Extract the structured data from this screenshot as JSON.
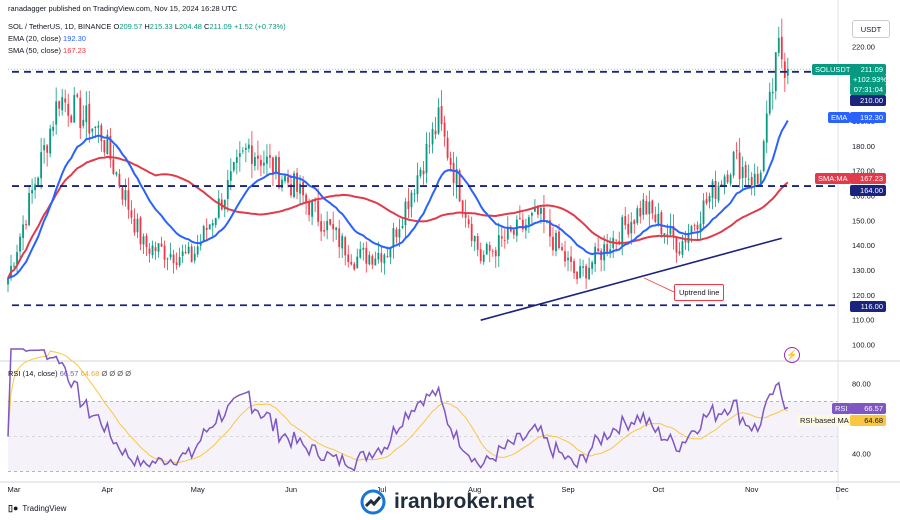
{
  "credit": "ranadagger published on TradingView.com, Nov 15, 2024 16:28 UTC",
  "header": {
    "symbol": "SOL / TetherUS, 1D, BINANCE",
    "o_label": "O",
    "o_value": "209.57",
    "h_label": "H",
    "h_value": "215.33",
    "l_label": "L",
    "l_value": "204.48",
    "c_label": "C",
    "c_value": "211.09",
    "change": "+1.52 (+0.73%)",
    "ema_label": "EMA (20, close)",
    "ema_value": "192.30",
    "sma_label": "SMA (50, close)",
    "sma_value": "167.23"
  },
  "currency": "USDT",
  "rsi_header": {
    "label": "RSI (14, close)",
    "value1": "66.57",
    "value2": "64.68",
    "extra": "Ø Ø Ø Ø"
  },
  "tags": {
    "symbol_tag": "SOLUSDT",
    "price": "211.09",
    "change_pct": "+102.93%",
    "countdown": "07:31:04",
    "resistance": "210.00",
    "ema": "EMA",
    "ema_value": "192.30",
    "sma": "SMA:MA",
    "sma_value": "167.23",
    "support_mid": "164.00",
    "support_low": "116.00",
    "rsi": "RSI",
    "rsi_value": "66.57",
    "rsi_ma": "RSI-based MA",
    "rsi_ma_value": "64.68"
  },
  "annotation": "Uptrend line",
  "footer": {
    "tv": "TradingView",
    "brand": "iranbroker.net"
  },
  "colors": {
    "up": "#089981",
    "down": "#f23645",
    "ema": "#2962ff",
    "sma": "#e03b4a",
    "rsi": "#7e57c2",
    "rsi_ma": "#f9c744",
    "hline": "#1a237e",
    "trend": "#1a237e"
  },
  "chart_data": [
    {
      "type": "candlestick",
      "title": "SOL / TetherUS, 1D, BINANCE",
      "ylim": [
        95,
        228
      ],
      "y_ticks": [
        100,
        110,
        120,
        130,
        140,
        150,
        160,
        170,
        180,
        190,
        200,
        210,
        220
      ],
      "x_ticks": [
        "Mar",
        "Apr",
        "May",
        "Jun",
        "Jul",
        "Aug",
        "Sep",
        "Oct",
        "Nov",
        "Dec"
      ],
      "horizontal_levels": [
        210,
        164,
        116
      ],
      "trendline": [
        [
          "2024-08-05",
          110
        ],
        [
          "2024-11-13",
          143
        ]
      ],
      "ema20_last": 192.3,
      "sma50_last": 167.23,
      "last_close": 211.09,
      "closes_monthly_approx": [
        {
          "date": "2024-03-01",
          "close": 127
        },
        {
          "date": "2024-03-18",
          "close": 200
        },
        {
          "date": "2024-04-01",
          "close": 185
        },
        {
          "date": "2024-04-15",
          "close": 140
        },
        {
          "date": "2024-05-01",
          "close": 135
        },
        {
          "date": "2024-05-20",
          "close": 180
        },
        {
          "date": "2024-06-03",
          "close": 165
        },
        {
          "date": "2024-06-24",
          "close": 135
        },
        {
          "date": "2024-07-05",
          "close": 138
        },
        {
          "date": "2024-07-22",
          "close": 190
        },
        {
          "date": "2024-08-05",
          "close": 135
        },
        {
          "date": "2024-08-24",
          "close": 152
        },
        {
          "date": "2024-09-06",
          "close": 127
        },
        {
          "date": "2024-09-28",
          "close": 156
        },
        {
          "date": "2024-10-10",
          "close": 140
        },
        {
          "date": "2024-10-28",
          "close": 175
        },
        {
          "date": "2024-11-05",
          "close": 165
        },
        {
          "date": "2024-11-12",
          "close": 219
        },
        {
          "date": "2024-11-15",
          "close": 211.09
        }
      ]
    },
    {
      "type": "line",
      "title": "RSI (14, close)",
      "ylim": [
        30,
        90
      ],
      "y_ticks": [
        40,
        80
      ],
      "bands": [
        70,
        50,
        30
      ],
      "series": [
        {
          "name": "RSI",
          "last": 66.57
        },
        {
          "name": "RSI-based MA",
          "last": 64.68
        }
      ]
    }
  ]
}
